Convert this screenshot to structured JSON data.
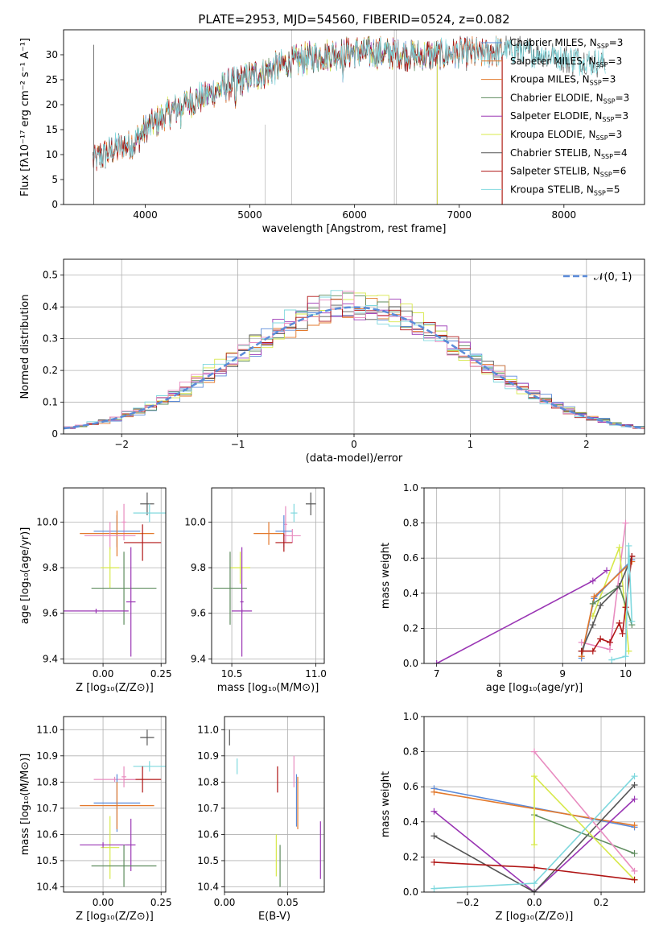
{
  "title": "PLATE=2953, MJD=54560, FIBERID=0524, z=0.082",
  "colors": {
    "blue": "#5b8bd9",
    "orange": "#e3792c",
    "green": "#5e8c5e",
    "purple": "#9a36b4",
    "yellow": "#d7e84a",
    "dark": "#555555",
    "red": "#b01515",
    "cyan": "#7fd8de",
    "pink": "#e88cc0",
    "gray": "#bbbbbb"
  },
  "chart_data": [
    {
      "id": "spectrum",
      "type": "line",
      "xlabel": "wavelength [Angstrom, rest frame]",
      "ylabel": "Flux [fλ10⁻¹⁷ erg cm⁻² s⁻¹ A⁻¹]",
      "xlim": [
        3220,
        8770
      ],
      "ylim": [
        0,
        35
      ],
      "xticks": [
        4000,
        5000,
        6000,
        7000,
        8000
      ],
      "yticks": [
        0,
        5,
        10,
        15,
        20,
        25,
        30
      ],
      "grid": false,
      "legend_position": "upper right",
      "continuum": {
        "x": [
          3500,
          3700,
          3900,
          4000,
          4200,
          4400,
          4600,
          4800,
          5000,
          5200,
          5400,
          5600,
          5800,
          6000,
          6200,
          6400,
          6600,
          6800,
          7000,
          7200,
          7400,
          7600,
          7800,
          8000,
          8200,
          8400
        ],
        "y": [
          9,
          11,
          12.5,
          15,
          18,
          20.5,
          22,
          24,
          25.5,
          27,
          28.5,
          29.5,
          30.2,
          30.6,
          30.4,
          30.2,
          29.8,
          30,
          30.3,
          30.3,
          30.8,
          30.6,
          30,
          29.5,
          28.8,
          28.2
        ]
      },
      "series": [
        {
          "name": "Chabrier MILES, N_SSP=3",
          "color": "blue",
          "x_range": [
            3540,
            7410
          ]
        },
        {
          "name": "Salpeter MILES, N_SSP=3",
          "color": "orange",
          "x_range": [
            3540,
            7410
          ]
        },
        {
          "name": "Kroupa MILES, N_SSP=3",
          "color": "orange",
          "x_range": [
            3540,
            7410
          ]
        },
        {
          "name": "Chabrier ELODIE, N_SSP=3",
          "color": "green",
          "x_range": [
            3900,
            6790
          ]
        },
        {
          "name": "Salpeter ELODIE, N_SSP=3",
          "color": "purple",
          "x_range": [
            3900,
            6790
          ]
        },
        {
          "name": "Kroupa ELODIE, N_SSP=3",
          "color": "yellow",
          "x_range": [
            3900,
            6790
          ]
        },
        {
          "name": "Chabrier STELIB, N_SSP=4",
          "color": "dark",
          "x_range": [
            3500,
            8400
          ]
        },
        {
          "name": "Salpeter STELIB, N_SSP=6",
          "color": "red",
          "x_range": [
            3500,
            7410
          ]
        },
        {
          "name": "Kroupa STELIB, N_SSP=5",
          "color": "cyan",
          "x_range": [
            3500,
            8400
          ]
        }
      ]
    },
    {
      "id": "residuals",
      "type": "step-histogram",
      "xlabel": "(data-model)/error",
      "ylabel": "Normed distribution",
      "xlim": [
        -2.5,
        2.5
      ],
      "ylim": [
        0,
        0.55
      ],
      "xticks": [
        -2,
        -1,
        0,
        1,
        2
      ],
      "yticks": [
        0,
        0.1,
        0.2,
        0.3,
        0.4,
        0.5
      ],
      "grid": true,
      "bin_width": 0.1,
      "legend_label": "𝒩(0, 1)",
      "legend_position": "upper right",
      "reference_curve": "standard normal",
      "series_colors": [
        "blue",
        "orange",
        "green",
        "purple",
        "yellow",
        "dark",
        "red",
        "cyan",
        "pink"
      ]
    },
    {
      "id": "age_vs_Z",
      "type": "errorbar",
      "xlabel": "Z [log₁₀(Z/Z⊙)]",
      "ylabel": "age  [log₁₀(age/yr)]",
      "xlim": [
        -0.17,
        0.27
      ],
      "ylim": [
        9.38,
        10.15
      ],
      "xticks": [
        0.0,
        0.25
      ],
      "xtick_labels": [
        "0.00",
        "0.25"
      ],
      "yticks": [
        9.4,
        9.6,
        9.8,
        10.0
      ],
      "ytick_labels": [
        "9.4",
        "9.6",
        "9.8",
        "10.0"
      ],
      "grid": true,
      "points": [
        {
          "color": "dark",
          "x": 0.19,
          "xerr": 0.03,
          "y": 10.08,
          "yerr": 0.05
        },
        {
          "color": "cyan",
          "x": 0.2,
          "xerr": 0.07,
          "y": 10.04,
          "yerr": 0.04
        },
        {
          "color": "pink",
          "x": 0.09,
          "xerr": 0.01,
          "y": 10.0,
          "yerr": 0.08
        },
        {
          "color": "blue",
          "x": 0.06,
          "xerr": 0.1,
          "y": 9.96,
          "yerr": 0.07
        },
        {
          "color": "orange",
          "x": 0.06,
          "xerr": 0.16,
          "y": 9.95,
          "yerr": 0.1
        },
        {
          "color": "pink",
          "x": 0.03,
          "xerr": 0.11,
          "y": 9.94,
          "yerr": 0.06
        },
        {
          "color": "red",
          "x": 0.17,
          "xerr": 0.08,
          "y": 9.91,
          "yerr": 0.08
        },
        {
          "color": "yellow",
          "x": 0.03,
          "xerr": 0.04,
          "y": 9.8,
          "yerr": 0.09
        },
        {
          "color": "green",
          "x": 0.09,
          "xerr": 0.14,
          "y": 9.71,
          "yerr": 0.16
        },
        {
          "color": "purple",
          "x": 0.12,
          "xerr": 0.02,
          "y": 9.65,
          "yerr": 0.24
        },
        {
          "color": "purple",
          "x": -0.03,
          "xerr": 0.14,
          "y": 9.61,
          "yerr": 0.01
        }
      ]
    },
    {
      "id": "age_vs_mass",
      "type": "errorbar",
      "xlabel": "mass [log₁₀(M/M⊙)]",
      "xlim": [
        10.38,
        11.05
      ],
      "ylim": [
        9.38,
        10.15
      ],
      "xticks": [
        10.5,
        11.0
      ],
      "xtick_labels": [
        "10.5",
        "11.0"
      ],
      "yticks": [
        9.4,
        9.6,
        9.8,
        10.0
      ],
      "ytick_labels": [
        "9.4",
        "9.6",
        "9.8",
        "10.0"
      ],
      "grid": true,
      "points": [
        {
          "color": "dark",
          "x": 10.97,
          "xerr": 0.03,
          "y": 10.08,
          "yerr": 0.05
        },
        {
          "color": "cyan",
          "x": 10.87,
          "xerr": 0.02,
          "y": 10.04,
          "yerr": 0.04
        },
        {
          "color": "pink",
          "x": 10.82,
          "xerr": 0.01,
          "y": 9.99,
          "yerr": 0.08
        },
        {
          "color": "blue",
          "x": 10.81,
          "xerr": 0.05,
          "y": 9.96,
          "yerr": 0.07
        },
        {
          "color": "orange",
          "x": 10.72,
          "xerr": 0.09,
          "y": 9.95,
          "yerr": 0.05
        },
        {
          "color": "pink",
          "x": 10.86,
          "xerr": 0.05,
          "y": 9.94,
          "yerr": 0.03
        },
        {
          "color": "red",
          "x": 10.81,
          "xerr": 0.05,
          "y": 9.91,
          "yerr": 0.04
        },
        {
          "color": "yellow",
          "x": 10.55,
          "xerr": 0.06,
          "y": 9.8,
          "yerr": 0.07
        },
        {
          "color": "green",
          "x": 10.49,
          "xerr": 0.1,
          "y": 9.71,
          "yerr": 0.16
        },
        {
          "color": "purple",
          "x": 10.56,
          "xerr": 0.01,
          "y": 9.65,
          "yerr": 0.24
        },
        {
          "color": "purple",
          "x": 10.56,
          "xerr": 0.06,
          "y": 9.61,
          "yerr": 0.01
        }
      ]
    },
    {
      "id": "massweight_vs_age",
      "type": "line",
      "xlabel": "age  [log₁₀(age/yr)]",
      "ylabel": "mass weight",
      "xlim": [
        6.8,
        10.3
      ],
      "ylim": [
        0,
        1
      ],
      "xticks": [
        7,
        8,
        9,
        10
      ],
      "xtick_labels": [
        "7",
        "8",
        "9",
        "10"
      ],
      "yticks": [
        0,
        0.2,
        0.4,
        0.6,
        0.8,
        1.0
      ],
      "ytick_labels": [
        "0.0",
        "0.2",
        "0.4",
        "0.6",
        "0.8",
        "1.0"
      ],
      "grid": true,
      "series": [
        {
          "color": "purple",
          "x": [
            7.0,
            9.48,
            9.7
          ],
          "y": [
            0.0,
            0.47,
            0.53
          ]
        },
        {
          "color": "pink",
          "x": [
            9.3,
            9.75,
            10.0
          ],
          "y": [
            0.12,
            0.08,
            0.8
          ]
        },
        {
          "color": "yellow",
          "x": [
            9.48,
            9.9,
            10.05
          ],
          "y": [
            0.27,
            0.66,
            0.07
          ]
        },
        {
          "color": "blue",
          "x": [
            9.3,
            9.5,
            10.1
          ],
          "y": [
            0.03,
            0.37,
            0.59
          ]
        },
        {
          "color": "orange",
          "x": [
            9.3,
            9.5,
            10.1
          ],
          "y": [
            0.04,
            0.38,
            0.58
          ]
        },
        {
          "color": "green",
          "x": [
            9.48,
            9.9,
            10.1
          ],
          "y": [
            0.34,
            0.44,
            0.22
          ]
        },
        {
          "color": "dark",
          "x": [
            9.3,
            9.48,
            9.6,
            9.9,
            10.1
          ],
          "y": [
            0.07,
            0.22,
            0.33,
            0.44,
            0.61
          ]
        },
        {
          "color": "red",
          "x": [
            9.3,
            9.48,
            9.6,
            9.75,
            9.9,
            9.95,
            10.0,
            10.1
          ],
          "y": [
            0.07,
            0.07,
            0.14,
            0.12,
            0.23,
            0.17,
            0.32,
            0.61
          ]
        },
        {
          "color": "cyan",
          "x": [
            9.78,
            10.0,
            10.05,
            10.1
          ],
          "y": [
            0.02,
            0.04,
            0.67,
            0.24
          ]
        }
      ]
    },
    {
      "id": "mass_vs_Z",
      "type": "errorbar",
      "xlabel": "Z [log₁₀(Z/Z⊙)]",
      "ylabel": "mass [log₁₀(M/M⊙)]",
      "xlim": [
        -0.17,
        0.27
      ],
      "ylim": [
        10.38,
        11.05
      ],
      "xticks": [
        0.0,
        0.25
      ],
      "xtick_labels": [
        "0.00",
        "0.25"
      ],
      "yticks": [
        10.4,
        10.5,
        10.6,
        10.7,
        10.8,
        10.9,
        11.0
      ],
      "ytick_labels": [
        "10.4",
        "10.5",
        "10.6",
        "10.7",
        "10.8",
        "10.9",
        "11.0"
      ],
      "grid": true,
      "points": [
        {
          "color": "dark",
          "x": 0.19,
          "xerr": 0.03,
          "y": 10.97,
          "yerr": 0.03
        },
        {
          "color": "cyan",
          "x": 0.2,
          "xerr": 0.07,
          "y": 10.86,
          "yerr": 0.02
        },
        {
          "color": "pink",
          "x": 0.09,
          "xerr": 0.01,
          "y": 10.82,
          "yerr": 0.04
        },
        {
          "color": "red",
          "x": 0.17,
          "xerr": 0.08,
          "y": 10.81,
          "yerr": 0.05
        },
        {
          "color": "pink",
          "x": 0.05,
          "xerr": 0.09,
          "y": 10.81,
          "yerr": 0.01
        },
        {
          "color": "blue",
          "x": 0.06,
          "xerr": 0.1,
          "y": 10.72,
          "yerr": 0.11
        },
        {
          "color": "orange",
          "x": 0.06,
          "xerr": 0.16,
          "y": 10.71,
          "yerr": 0.09
        },
        {
          "color": "yellow",
          "x": 0.03,
          "xerr": 0.04,
          "y": 10.55,
          "yerr": 0.12
        },
        {
          "color": "purple",
          "x": 0.12,
          "xerr": 0.02,
          "y": 10.56,
          "yerr": 0.1
        },
        {
          "color": "purple",
          "x": 0.0,
          "xerr": 0.1,
          "y": 10.56,
          "yerr": 0.01
        },
        {
          "color": "green",
          "x": 0.09,
          "xerr": 0.14,
          "y": 10.48,
          "yerr": 0.08
        }
      ]
    },
    {
      "id": "mass_vs_EBV",
      "type": "errorbar",
      "xlabel": "E(B-V)",
      "xlim": [
        0.0,
        0.079
      ],
      "ylim": [
        10.38,
        11.05
      ],
      "xticks": [
        0.0,
        0.05
      ],
      "xtick_labels": [
        "0.00",
        "0.05"
      ],
      "yticks": [
        10.4,
        10.5,
        10.6,
        10.7,
        10.8,
        10.9,
        11.0
      ],
      "ytick_labels": [
        "10.4",
        "10.5",
        "10.6",
        "10.7",
        "10.8",
        "10.9",
        "11.0"
      ],
      "grid": true,
      "points": [
        {
          "color": "dark",
          "x": 0.004,
          "xerr": 0.0,
          "y": 10.97,
          "yerr": 0.03
        },
        {
          "color": "cyan",
          "x": 0.01,
          "xerr": 0.0,
          "y": 10.86,
          "yerr": 0.03
        },
        {
          "color": "red",
          "x": 0.042,
          "xerr": 0.0,
          "y": 10.81,
          "yerr": 0.05
        },
        {
          "color": "pink",
          "x": 0.055,
          "xerr": 0.0,
          "y": 10.84,
          "yerr": 0.06
        },
        {
          "color": "blue",
          "x": 0.057,
          "xerr": 0.0,
          "y": 10.73,
          "yerr": 0.1
        },
        {
          "color": "orange",
          "x": 0.058,
          "xerr": 0.0,
          "y": 10.72,
          "yerr": 0.1
        },
        {
          "color": "yellow",
          "x": 0.041,
          "xerr": 0.0,
          "y": 10.52,
          "yerr": 0.08
        },
        {
          "color": "green",
          "x": 0.044,
          "xerr": 0.0,
          "y": 10.48,
          "yerr": 0.08
        },
        {
          "color": "purple",
          "x": 0.076,
          "xerr": 0.0,
          "y": 10.54,
          "yerr": 0.11
        }
      ]
    },
    {
      "id": "massweight_vs_Z",
      "type": "line",
      "xlabel": "Z [log₁₀(Z/Z⊙)]",
      "ylabel": "mass weight",
      "xlim": [
        -0.33,
        0.33
      ],
      "ylim": [
        0,
        1
      ],
      "xticks": [
        -0.2,
        0.0,
        0.2
      ],
      "xtick_labels": [
        "−0.2",
        "0.0",
        "0.2"
      ],
      "yticks": [
        0,
        0.2,
        0.4,
        0.6,
        0.8,
        1.0
      ],
      "ytick_labels": [
        "0.0",
        "0.2",
        "0.4",
        "0.6",
        "0.8",
        "1.0"
      ],
      "grid": true,
      "series": [
        {
          "color": "blue",
          "x": [
            -0.3,
            0.3
          ],
          "y": [
            0.59,
            0.37
          ]
        },
        {
          "color": "orange",
          "x": [
            -0.3,
            0.3
          ],
          "y": [
            0.57,
            0.38
          ]
        },
        {
          "color": "purple",
          "x": [
            -0.3,
            0.0,
            0.3
          ],
          "y": [
            0.46,
            0.0,
            0.53
          ]
        },
        {
          "color": "dark",
          "x": [
            -0.3,
            0.0,
            0.3
          ],
          "y": [
            0.32,
            0.0,
            0.61
          ]
        },
        {
          "color": "green",
          "x": [
            0.0,
            0.3
          ],
          "y": [
            0.44,
            0.22
          ]
        },
        {
          "color": "yellow",
          "x": [
            0.0,
            0.0,
            0.3
          ],
          "y": [
            0.27,
            0.66,
            0.07
          ]
        },
        {
          "color": "pink",
          "x": [
            0.0,
            0.3
          ],
          "y": [
            0.8,
            0.12
          ]
        },
        {
          "color": "red",
          "x": [
            -0.3,
            0.0,
            0.3
          ],
          "y": [
            0.17,
            0.14,
            0.07
          ]
        },
        {
          "color": "cyan",
          "x": [
            -0.3,
            0.0,
            0.3
          ],
          "y": [
            0.02,
            0.05,
            0.66
          ]
        }
      ]
    }
  ]
}
